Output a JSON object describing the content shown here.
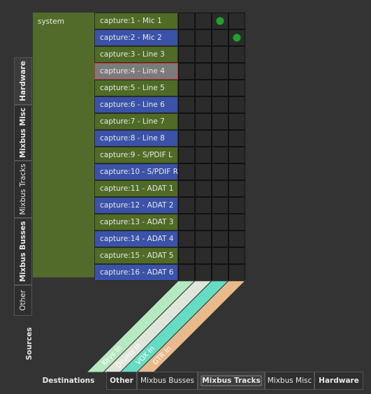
{
  "sources": {
    "label": "Sources",
    "tabs": [
      "Hardware",
      "Mixbus Misc",
      "Mixbus Tracks",
      "Mixbus Busses",
      "Other"
    ],
    "group": "system",
    "ports": [
      "capture:1 - Mic 1",
      "capture:2 - Mic 2",
      "capture:3 - Line 3",
      "capture:4 - Line 4",
      "capture:5 - Line 5",
      "capture:6 - Line 6",
      "capture:7 - Line 7",
      "capture:8 - Line 8",
      "capture:9 - S/PDIF L",
      "capture:10 - S/PDIF R",
      "capture:11 - ADAT 1",
      "capture:12 - ADAT 2",
      "capture:13 - ADAT 3",
      "capture:14 - ADAT 4",
      "capture:15 - ADAT 5",
      "capture:16 - ADAT 6"
    ]
  },
  "destinations": {
    "label": "Destinations",
    "tabs": [
      "Other",
      "Mixbus Busses",
      "Mixbus Tracks",
      "Mixbus Misc",
      "Hardware"
    ],
    "ports": [
      "Keys In",
      "Drums In",
      "VOX In",
      "GTR In"
    ]
  }
}
